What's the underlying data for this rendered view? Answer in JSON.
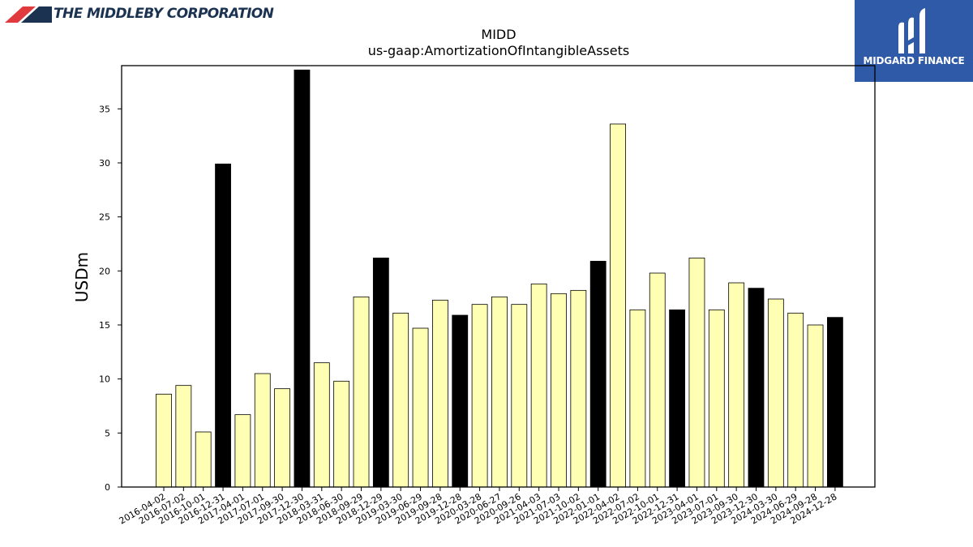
{
  "header": {
    "company_name": "THE MIDDLEBY CORPORATION",
    "badge_label": "MIDGARD FINANCE"
  },
  "chart_data": {
    "type": "bar",
    "title": "MIDD",
    "subtitle": "us-gaap:AmortizationOfIntangibleAssets",
    "ylabel": "USDm",
    "xlabel": "",
    "ylim": [
      0,
      39
    ],
    "yticks": [
      0,
      5,
      10,
      15,
      20,
      25,
      30,
      35
    ],
    "grid": false,
    "legend": "none",
    "colors": {
      "quarter": "#ffffb3",
      "year_end": "#000000",
      "edge": "#000000"
    },
    "categories": [
      "2016-04-02",
      "2016-07-02",
      "2016-10-01",
      "2016-12-31",
      "2017-04-01",
      "2017-07-01",
      "2017-09-30",
      "2017-12-30",
      "2018-03-31",
      "2018-06-30",
      "2018-09-29",
      "2018-12-29",
      "2019-03-30",
      "2019-06-29",
      "2019-09-28",
      "2019-12-28",
      "2020-03-28",
      "2020-06-27",
      "2020-09-26",
      "2021-04-03",
      "2021-07-03",
      "2021-10-02",
      "2022-01-01",
      "2022-04-02",
      "2022-07-02",
      "2022-10-01",
      "2022-12-31",
      "2023-04-01",
      "2023-07-01",
      "2023-09-30",
      "2023-12-30",
      "2024-03-30",
      "2024-06-29",
      "2024-09-28",
      "2024-12-28"
    ],
    "values": [
      8.6,
      9.4,
      5.1,
      29.9,
      6.7,
      10.5,
      9.1,
      38.6,
      11.5,
      9.8,
      17.6,
      21.2,
      16.1,
      14.7,
      17.3,
      15.9,
      16.9,
      17.6,
      16.9,
      18.8,
      17.9,
      18.2,
      20.9,
      33.6,
      16.4,
      19.8,
      16.4,
      21.2,
      16.4,
      18.9,
      18.4,
      17.4,
      16.1,
      15.0,
      15.7
    ],
    "highlight": [
      false,
      false,
      false,
      true,
      false,
      false,
      false,
      true,
      false,
      false,
      false,
      true,
      false,
      false,
      false,
      true,
      false,
      false,
      false,
      false,
      false,
      false,
      true,
      false,
      false,
      false,
      true,
      false,
      false,
      false,
      true,
      false,
      false,
      false,
      true
    ]
  }
}
